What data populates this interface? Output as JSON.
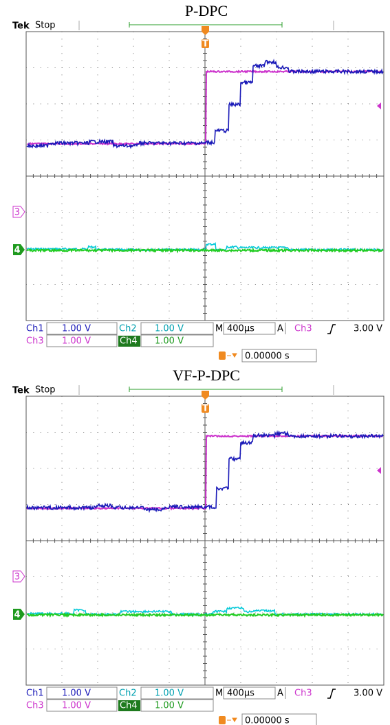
{
  "panels": [
    {
      "title": "P-DPC",
      "brand": "Tek",
      "status": "Stop",
      "markers": {
        "trigger": "T",
        "ch3": "3",
        "ch4": "4"
      },
      "row1": [
        {
          "label": "Ch1",
          "value": "1.00 V"
        },
        {
          "label": "Ch2",
          "value": "1.00 V"
        }
      ],
      "row2": [
        {
          "label": "Ch3",
          "value": "1.00 V"
        },
        {
          "label": "Ch4",
          "value": "1.00 V"
        }
      ],
      "timebase": {
        "label": "M",
        "value": "400µs"
      },
      "trigger": {
        "label": "A",
        "source": "Ch3",
        "level": "3.00 V"
      },
      "trigger_position": "0.00000 s"
    },
    {
      "title": "VF-P-DPC",
      "brand": "Tek",
      "status": "Stop",
      "markers": {
        "trigger": "T",
        "ch3": "3",
        "ch4": "4"
      },
      "row1": [
        {
          "label": "Ch1",
          "value": "1.00 V"
        },
        {
          "label": "Ch2",
          "value": "1.00 V"
        }
      ],
      "row2": [
        {
          "label": "Ch3",
          "value": "1.00 V"
        },
        {
          "label": "Ch4",
          "value": "1.00 V"
        }
      ],
      "timebase": {
        "label": "M",
        "value": "400µs"
      },
      "trigger": {
        "label": "A",
        "source": "Ch3",
        "level": "3.00 V"
      },
      "trigger_position": "0.00000 s"
    }
  ]
}
